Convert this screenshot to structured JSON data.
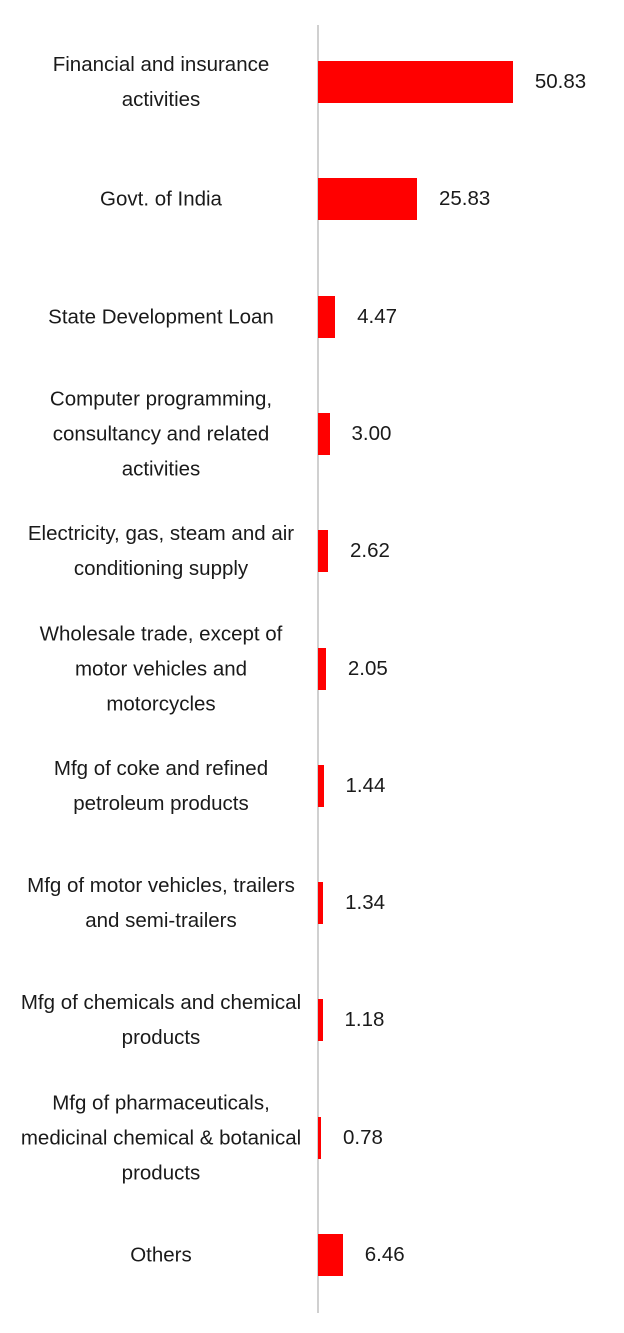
{
  "chart_data": {
    "type": "bar",
    "orientation": "horizontal",
    "categories": [
      "Financial and insurance activities",
      "Govt. of India",
      "State Development Loan",
      "Computer programming, consultancy and related activities",
      "Electricity, gas, steam and air conditioning supply",
      "Wholesale trade, except of motor vehicles and motorcycles",
      "Mfg of coke and refined petroleum products",
      "Mfg of motor vehicles, trailers and semi-trailers",
      "Mfg of chemicals and chemical products",
      "Mfg of pharmaceuticals, medicinal chemical & botanical products",
      "Others"
    ],
    "values": [
      50.83,
      25.83,
      4.47,
      3.0,
      2.62,
      2.05,
      1.44,
      1.34,
      1.18,
      0.78,
      6.46
    ],
    "value_labels": [
      "50.83",
      "25.83",
      "4.47",
      "3.00",
      "2.62",
      "2.05",
      "1.44",
      "1.34",
      "1.18",
      "0.78",
      "6.46"
    ],
    "color": "#ff0000",
    "xlim": [
      0,
      60
    ]
  }
}
